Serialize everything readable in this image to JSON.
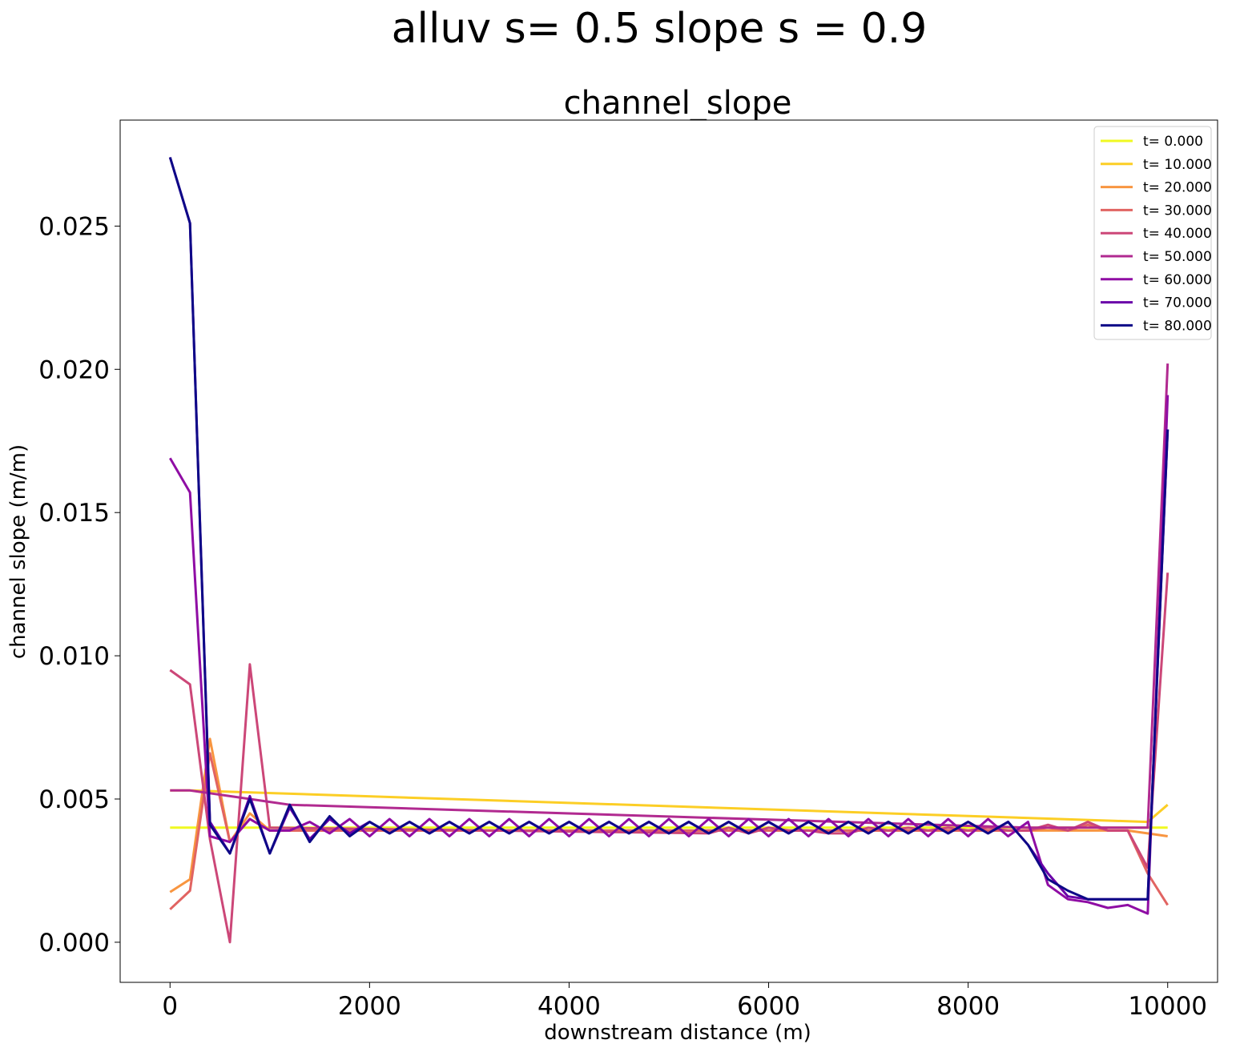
{
  "figure": {
    "suptitle": "alluv s= 0.5     slope s = 0.9"
  },
  "chart_data": {
    "type": "line",
    "title": "channel_slope",
    "xlabel": "downstream distance (m)",
    "ylabel": "channel slope (m/m)",
    "xlim": [
      -500,
      10500
    ],
    "ylim": [
      -0.0014,
      0.0287
    ],
    "xticks": [
      0,
      2000,
      4000,
      6000,
      8000,
      10000
    ],
    "xtick_labels": [
      "0",
      "2000",
      "4000",
      "6000",
      "8000",
      "10000"
    ],
    "yticks": [
      0,
      0.005,
      0.01,
      0.015,
      0.02,
      0.025
    ],
    "ytick_labels": [
      "0.000",
      "0.005",
      "0.010",
      "0.015",
      "0.020",
      "0.025"
    ],
    "grid": false,
    "legend_position": "top-right",
    "series": [
      {
        "name": "t= 0.000",
        "color": "#f0f921",
        "x": [
          0,
          10000
        ],
        "y": [
          0.004,
          0.004
        ]
      },
      {
        "name": "t= 10.000",
        "color": "#fcce25",
        "x": [
          0,
          200,
          9800,
          10000
        ],
        "y": [
          0.0053,
          0.0053,
          0.0042,
          0.0048
        ]
      },
      {
        "name": "t= 20.000",
        "color": "#f89540",
        "x": [
          0,
          200,
          400,
          600,
          800,
          1000,
          9600,
          10000
        ],
        "y": [
          0.00175,
          0.0022,
          0.0071,
          0.0035,
          0.0045,
          0.0039,
          0.0039,
          0.0037
        ]
      },
      {
        "name": "t= 30.000",
        "color": "#e16462",
        "x": [
          0,
          200,
          400,
          600,
          800,
          1000,
          8600,
          8800,
          9000,
          9200,
          9400,
          9600,
          9800,
          10000
        ],
        "y": [
          0.00115,
          0.0018,
          0.0066,
          0.0035,
          0.0043,
          0.0039,
          0.0039,
          0.004,
          0.0039,
          0.0041,
          0.0039,
          0.0039,
          0.0024,
          0.0013
        ]
      },
      {
        "name": "t= 40.000",
        "color": "#cc4778",
        "x": [
          0,
          200,
          400,
          600,
          800,
          1000,
          5400,
          5600,
          5800,
          6000,
          6200,
          6400,
          6600,
          6800,
          7000,
          7200,
          7400,
          7600,
          7800,
          8000,
          8200,
          8400,
          8600,
          8800,
          9000,
          9200,
          9400,
          9600,
          9800,
          10000
        ],
        "y": [
          0.0095,
          0.009,
          0.0036,
          0.0,
          0.0097,
          0.004,
          0.0038,
          0.004,
          0.0038,
          0.004,
          0.0039,
          0.0039,
          0.0038,
          0.0038,
          0.004,
          0.0039,
          0.004,
          0.0039,
          0.004,
          0.0039,
          0.004,
          0.0039,
          0.0039,
          0.0041,
          0.0039,
          0.0042,
          0.0039,
          0.0039,
          0.0026,
          0.0129
        ]
      },
      {
        "name": "t= 50.000",
        "color": "#b12a90",
        "x": [
          0,
          200,
          400,
          600,
          800,
          1000,
          1200,
          8600,
          8800,
          9000,
          9200,
          9400,
          9600,
          9800,
          10000
        ],
        "y": [
          0.0053,
          0.0053,
          0.0052,
          0.0051,
          0.005,
          0.0049,
          0.0048,
          0.004,
          0.004,
          0.004,
          0.004,
          0.004,
          0.004,
          0.004,
          0.0202
        ]
      },
      {
        "name": "t= 60.000",
        "color": "#8f0da4",
        "x": [
          0,
          200,
          400,
          600,
          800,
          1000,
          1200,
          1400,
          1600,
          1800,
          2000,
          2200,
          2400,
          2600,
          2800,
          3000,
          3200,
          3400,
          3600,
          3800,
          4000,
          4200,
          4400,
          4600,
          4800,
          5000,
          5200,
          5400,
          5600,
          5800,
          6000,
          6200,
          6400,
          6600,
          6800,
          7000,
          7200,
          7400,
          7600,
          7800,
          8000,
          8200,
          8400,
          8600,
          8800,
          9000,
          9200,
          9400,
          9600,
          9800,
          10000
        ],
        "y": [
          0.0169,
          0.0157,
          0.0037,
          0.0035,
          0.0043,
          0.0039,
          0.0039,
          0.0042,
          0.0038,
          0.0043,
          0.0037,
          0.0043,
          0.0037,
          0.0043,
          0.0037,
          0.0043,
          0.0037,
          0.0043,
          0.0037,
          0.0043,
          0.0037,
          0.0043,
          0.0037,
          0.0043,
          0.0037,
          0.0043,
          0.0037,
          0.0043,
          0.0037,
          0.0043,
          0.0037,
          0.0043,
          0.0037,
          0.0043,
          0.0037,
          0.0043,
          0.0037,
          0.0043,
          0.0037,
          0.0043,
          0.0037,
          0.0043,
          0.0037,
          0.0042,
          0.002,
          0.0015,
          0.0014,
          0.0012,
          0.0013,
          0.001,
          0.0191
        ]
      },
      {
        "name": "t= 70.000",
        "color": "#6a00a8",
        "x": [
          0,
          200,
          400,
          600,
          800,
          1000,
          1200,
          1400,
          1600,
          1800,
          2000,
          2200,
          2400,
          2600,
          2800,
          3000,
          3200,
          3400,
          3600,
          3800,
          4000,
          4200,
          4400,
          4600,
          4800,
          5000,
          5200,
          5400,
          5600,
          5800,
          6000,
          6200,
          6400,
          6600,
          6800,
          7000,
          7200,
          7400,
          7600,
          7800,
          8000,
          8200,
          8400,
          8600,
          8800,
          9000,
          9200,
          9400,
          9600,
          9800,
          10000
        ],
        "y": [
          0.0274,
          0.0251,
          0.0042,
          0.0031,
          0.0051,
          0.0031,
          0.0047,
          0.0036,
          0.0043,
          0.0038,
          0.0042,
          0.0038,
          0.0042,
          0.0038,
          0.0042,
          0.0038,
          0.0042,
          0.0038,
          0.0042,
          0.0038,
          0.0042,
          0.0038,
          0.0042,
          0.0038,
          0.0042,
          0.0038,
          0.0042,
          0.0038,
          0.0042,
          0.0038,
          0.0042,
          0.0038,
          0.0042,
          0.0038,
          0.0042,
          0.0038,
          0.0042,
          0.0038,
          0.0042,
          0.0038,
          0.0042,
          0.0038,
          0.0042,
          0.0034,
          0.0024,
          0.0016,
          0.0015,
          0.0015,
          0.0015,
          0.0015,
          0.0179
        ]
      },
      {
        "name": "t= 80.000",
        "color": "#0d0887",
        "x": [
          0,
          200,
          400,
          600,
          800,
          1000,
          1200,
          1400,
          1600,
          1800,
          2000,
          2200,
          2400,
          2600,
          2800,
          3000,
          3200,
          3400,
          3600,
          3800,
          4000,
          4200,
          4400,
          4600,
          4800,
          5000,
          5200,
          5400,
          5600,
          5800,
          6000,
          6200,
          6400,
          6600,
          6800,
          7000,
          7200,
          7400,
          7600,
          7800,
          8000,
          8200,
          8400,
          8600,
          8800,
          9000,
          9200,
          9400,
          9600,
          9800,
          10000
        ],
        "y": [
          0.0274,
          0.0251,
          0.0041,
          0.0031,
          0.005,
          0.0031,
          0.0048,
          0.0035,
          0.0044,
          0.0037,
          0.0042,
          0.0038,
          0.0042,
          0.0038,
          0.0042,
          0.0038,
          0.0042,
          0.0038,
          0.0042,
          0.0038,
          0.0042,
          0.0038,
          0.0042,
          0.0038,
          0.0042,
          0.0038,
          0.0042,
          0.0038,
          0.0042,
          0.0038,
          0.0042,
          0.0038,
          0.0042,
          0.0038,
          0.0042,
          0.0038,
          0.0042,
          0.0038,
          0.0042,
          0.0038,
          0.0042,
          0.0038,
          0.0042,
          0.0034,
          0.0022,
          0.0018,
          0.0015,
          0.0015,
          0.0015,
          0.0015,
          0.0179
        ]
      }
    ]
  }
}
